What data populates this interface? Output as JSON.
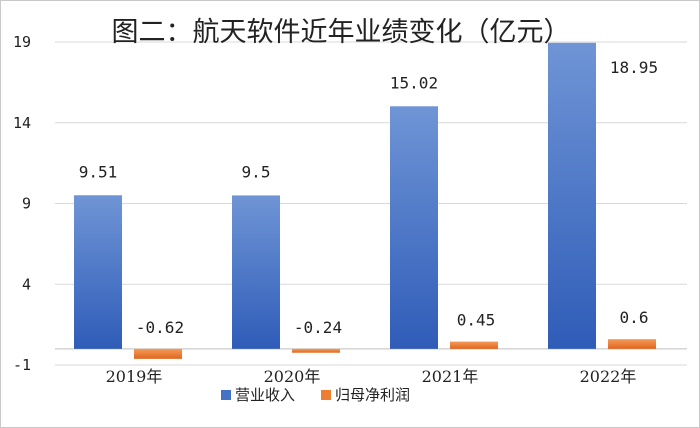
{
  "chart_data": {
    "type": "bar",
    "title": "图二：航天软件近年业绩变化（亿元）",
    "categories": [
      "2019年",
      "2020年",
      "2021年",
      "2022年"
    ],
    "series": [
      {
        "name": "营业收入",
        "values": [
          9.51,
          9.5,
          15.02,
          18.95
        ],
        "labels": [
          "9.51",
          "9.5",
          "15.02",
          "18.95"
        ],
        "color": "#4472C4"
      },
      {
        "name": "归母净利润",
        "values": [
          -0.62,
          -0.24,
          0.45,
          0.6
        ],
        "labels": [
          "-0.62",
          "-0.24",
          "0.45",
          "0.6"
        ],
        "color": "#ED7D31"
      }
    ],
    "yticks": [
      -1,
      4,
      9,
      14,
      19
    ],
    "ytick_labels": [
      "-1",
      "4",
      "9",
      "14",
      "19"
    ],
    "ylim": [
      -1,
      19
    ],
    "grid": true,
    "legend": "bottom",
    "xlabel": "",
    "ylabel": ""
  }
}
